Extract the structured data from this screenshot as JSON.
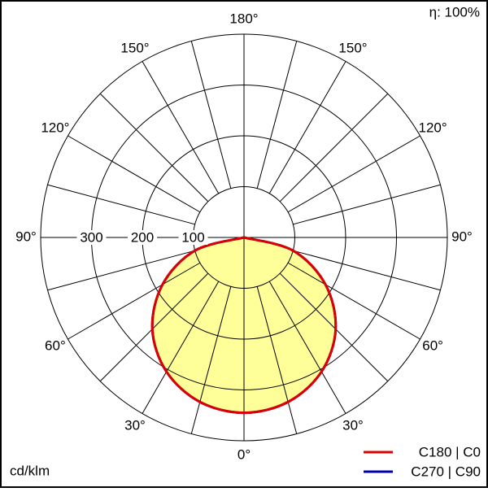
{
  "chart_data": {
    "type": "polar-photometric",
    "unit_label": "cd/klm",
    "efficiency_label": "η: 100%",
    "rlim": [
      0,
      400
    ],
    "rticks": [
      100,
      200,
      300
    ],
    "angle_ticks_right": [
      {
        "value": 0,
        "label": "0°"
      },
      {
        "value": 30,
        "label": "30°"
      },
      {
        "value": 60,
        "label": "60°"
      },
      {
        "value": 90,
        "label": "90°"
      },
      {
        "value": 120,
        "label": "120°"
      },
      {
        "value": 150,
        "label": "150°"
      },
      {
        "value": 180,
        "label": "180°"
      }
    ],
    "angle_ticks_left": [
      {
        "value": 30,
        "label": "30°"
      },
      {
        "value": 60,
        "label": "60°"
      },
      {
        "value": 90,
        "label": "90°"
      },
      {
        "value": 120,
        "label": "120°"
      },
      {
        "value": 150,
        "label": "150°"
      }
    ],
    "angles": [
      -90,
      -75,
      -60,
      -45,
      -30,
      -15,
      0,
      15,
      30,
      45,
      60,
      75,
      90
    ],
    "series": [
      {
        "name": "C270 | C90",
        "color": "#0000aa",
        "values": [
          0,
          100,
          185,
          255,
          305,
          335,
          345,
          335,
          305,
          255,
          185,
          100,
          0
        ]
      },
      {
        "name": "C180 | C0",
        "color": "#dd0000",
        "values": [
          0,
          100,
          185,
          255,
          305,
          335,
          345,
          335,
          305,
          255,
          185,
          100,
          0
        ]
      }
    ],
    "fill": "#ffff99"
  }
}
